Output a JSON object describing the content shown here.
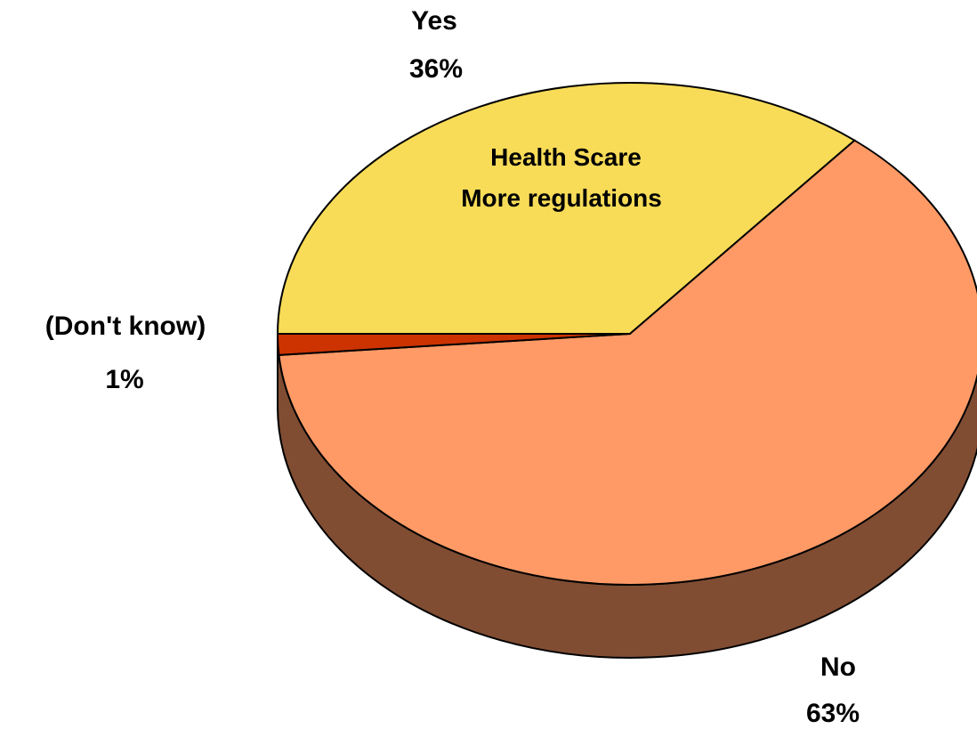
{
  "chart_data": {
    "type": "pie",
    "title": "",
    "slices": [
      {
        "label": "Yes",
        "value": 36,
        "value_label": "36%",
        "color": "#f8dc58"
      },
      {
        "label": "No",
        "value": 63,
        "value_label": "63%",
        "color": "#ff9a66"
      },
      {
        "label": "(Don't know)",
        "value": 1,
        "value_label": "1%",
        "color": "#cc3300"
      }
    ],
    "annotation": {
      "line1": "Health Scare",
      "line2": "More regulations"
    },
    "side_color": "#804d33",
    "style": "3d"
  }
}
